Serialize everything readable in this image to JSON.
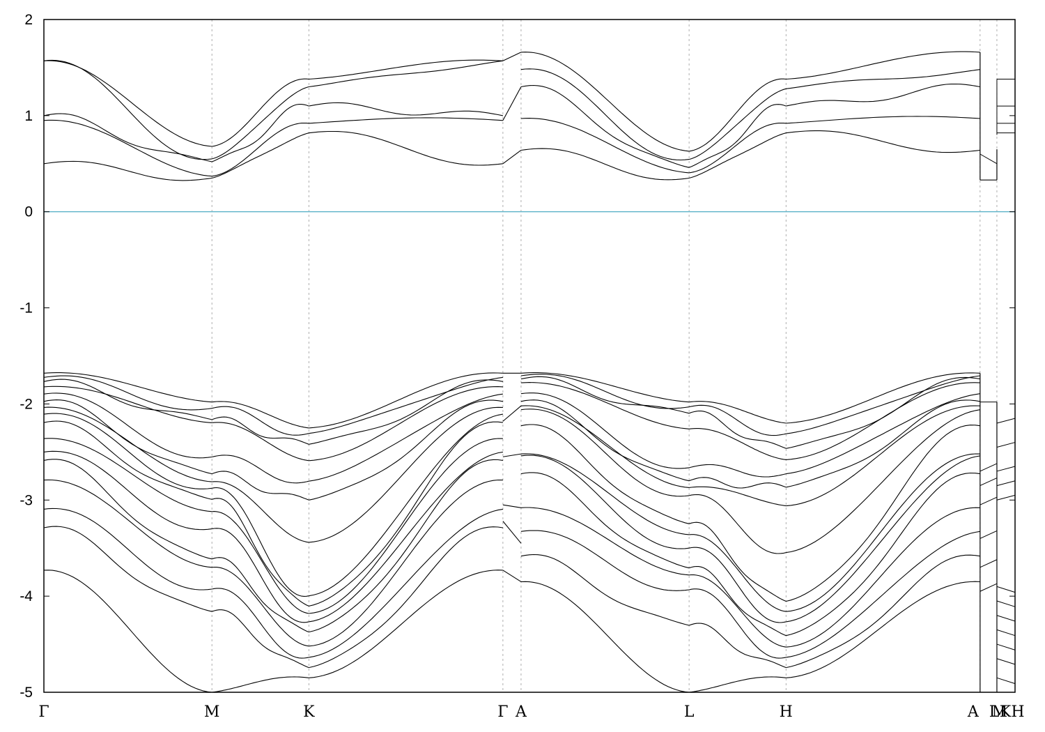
{
  "chart_data": {
    "type": "line",
    "title": "",
    "xlabel": "",
    "ylabel": "",
    "ylim": [
      -5,
      2
    ],
    "yticks": [
      "2",
      "1",
      "0",
      "-1",
      "-2",
      "-3",
      "-4",
      "-5"
    ],
    "grid": "vertical dashed lines at high-symmetry points",
    "fermi_level": {
      "value": 0,
      "color": "#5bb3c9"
    },
    "line_color": "#000000",
    "kpath": {
      "labels": [
        "Γ",
        "M",
        "K",
        "Γ",
        "A",
        "L",
        "H",
        "A",
        "M",
        "L",
        "K",
        "H"
      ],
      "x": [
        0,
        1.0,
        1.577,
        2.732,
        2.84,
        3.84,
        4.417,
        5.572,
        5.672,
        5.78,
        5.78,
        5.78
      ]
    },
    "x_range": [
      0,
      5.78
    ],
    "conduction_bands": {
      "gamma": [
        1.57,
        1.57,
        1.0,
        0.95,
        0.5
      ],
      "M": [
        0.68,
        0.55,
        0.52,
        0.37,
        0.35
      ],
      "K": [
        1.38,
        1.3,
        1.1,
        0.92,
        0.82
      ],
      "A": [
        1.66,
        1.3,
        0.64
      ],
      "L": [
        0.63,
        0.46,
        0.35
      ],
      "H": [
        1.38,
        1.28,
        1.1,
        0.92,
        0.82
      ]
    },
    "valence_bands": {
      "gamma": [
        -1.68,
        -1.73,
        -1.78,
        -1.85,
        -1.95,
        -2.02,
        -2.1,
        -2.2,
        -2.4,
        -2.55,
        -2.62,
        -3.05,
        -3.22,
        -3.73
      ],
      "M": [
        -1.98,
        -2.05,
        -2.18,
        -2.2,
        -2.68,
        -2.75,
        -2.85,
        -2.9,
        -3.1,
        -3.15,
        -3.6,
        -3.65,
        -3.9,
        -4.1,
        -5.0
      ],
      "K": [
        -2.25,
        -2.3,
        -2.4,
        -2.55,
        -2.75,
        -2.95,
        -3.1,
        -3.95,
        -4.05,
        -4.15,
        -4.2,
        -4.3,
        -4.4,
        -4.55,
        -4.65,
        -4.75,
        -4.85
      ],
      "A": [
        -1.68,
        -1.72,
        -1.78,
        -1.95,
        -2.02,
        -2.08,
        -2.52,
        -2.55,
        -3.08,
        -3.45,
        -3.85
      ],
      "L": [
        -1.98,
        -2.05,
        -2.15,
        -2.7,
        -2.85,
        -2.9,
        -3.3,
        -3.4,
        -3.7,
        -3.8,
        -4.05,
        -5.0
      ],
      "H": [
        -2.2,
        -2.3,
        -2.45,
        -2.55,
        -2.7,
        -2.8,
        -3.0,
        -3.15,
        -4.0,
        -4.1,
        -4.2,
        -4.3,
        -4.45,
        -4.55,
        -4.65,
        -4.75,
        -4.85
      ]
    }
  }
}
